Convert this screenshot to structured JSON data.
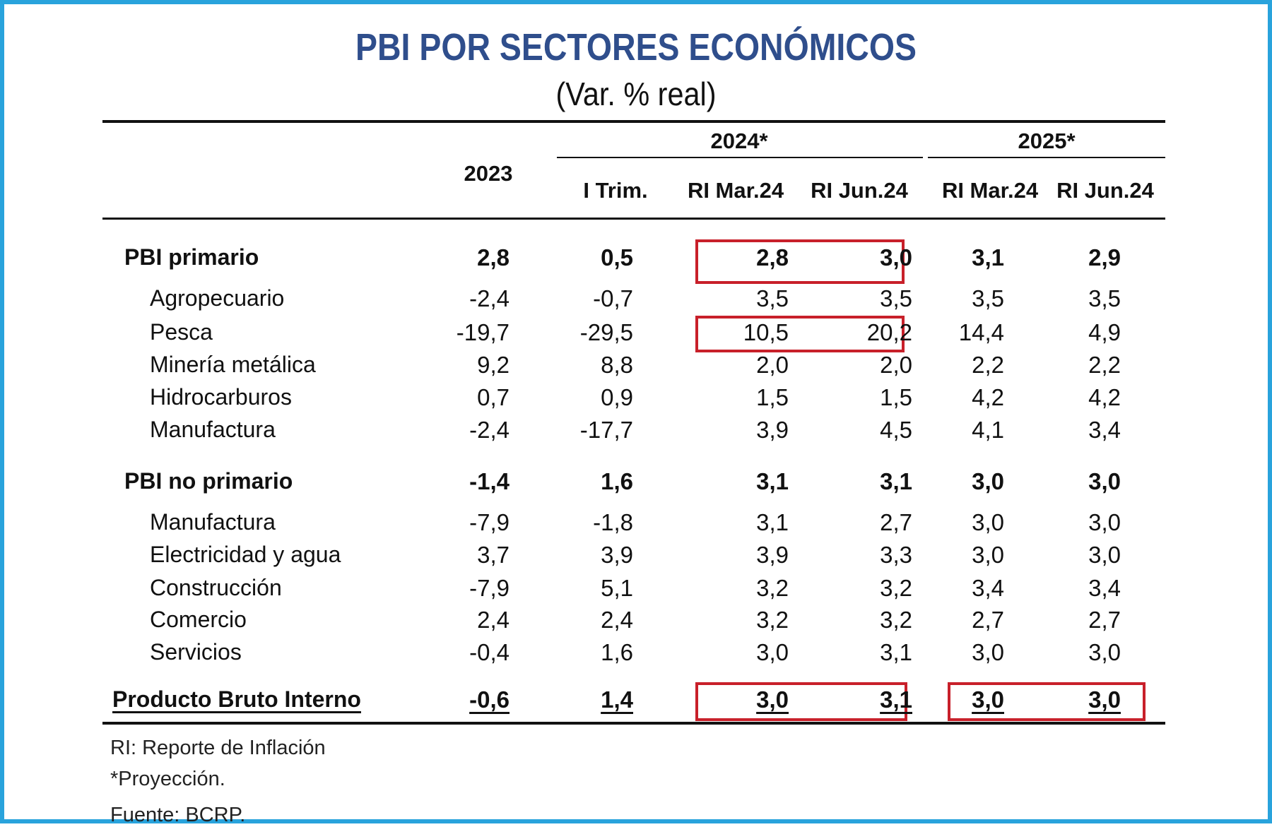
{
  "title": "PBI POR SECTORES ECONÓMICOS",
  "subtitle": "(Var. % real)",
  "colors": {
    "title": "#2f4e8c",
    "frame": "#29a3dc",
    "highlight": "#c8202a"
  },
  "chart_data": {
    "type": "table",
    "title": "PBI POR SECTORES ECONÓMICOS",
    "subtitle": "(Var. % real)",
    "group_headers": [
      "2024*",
      "2025*"
    ],
    "columns": [
      "2023",
      "I Trim.",
      "RI Mar.24",
      "RI Jun.24",
      "RI Mar.24",
      "RI Jun.24"
    ],
    "rows": [
      {
        "label": "PBI primario",
        "values": [
          "2,8",
          "0,5",
          "2,8",
          "3,0",
          "3,1",
          "2,9"
        ]
      },
      {
        "label": "Agropecuario",
        "values": [
          "-2,4",
          "-0,7",
          "3,5",
          "3,5",
          "3,5",
          "3,5"
        ]
      },
      {
        "label": "Pesca",
        "values": [
          "-19,7",
          "-29,5",
          "10,5",
          "20,2",
          "14,4",
          "4,9"
        ]
      },
      {
        "label": "Minería metálica",
        "values": [
          "9,2",
          "8,8",
          "2,0",
          "2,0",
          "2,2",
          "2,2"
        ]
      },
      {
        "label": "Hidrocarburos",
        "values": [
          "0,7",
          "0,9",
          "1,5",
          "1,5",
          "4,2",
          "4,2"
        ]
      },
      {
        "label": "Manufactura",
        "values": [
          "-2,4",
          "-17,7",
          "3,9",
          "4,5",
          "4,1",
          "3,4"
        ]
      },
      {
        "label": "PBI no primario",
        "values": [
          "-1,4",
          "1,6",
          "3,1",
          "3,1",
          "3,0",
          "3,0"
        ]
      },
      {
        "label": "Manufactura",
        "values": [
          "-7,9",
          "-1,8",
          "3,1",
          "2,7",
          "3,0",
          "3,0"
        ]
      },
      {
        "label": "Electricidad y agua",
        "values": [
          "3,7",
          "3,9",
          "3,9",
          "3,3",
          "3,0",
          "3,0"
        ]
      },
      {
        "label": "Construcción",
        "values": [
          "-7,9",
          "5,1",
          "3,2",
          "3,2",
          "3,4",
          "3,4"
        ]
      },
      {
        "label": "Comercio",
        "values": [
          "2,4",
          "2,4",
          "3,2",
          "3,2",
          "2,7",
          "2,7"
        ]
      },
      {
        "label": "Servicios",
        "values": [
          "-0,4",
          "1,6",
          "3,0",
          "3,1",
          "3,0",
          "3,0"
        ]
      },
      {
        "label": "Producto Bruto Interno",
        "values": [
          "-0,6",
          "1,4",
          "3,0",
          "3,1",
          "3,0",
          "3,0"
        ]
      }
    ]
  },
  "notes": [
    "RI: Reporte de Inflación",
    "*Proyección.",
    "Fuente: BCRP."
  ]
}
